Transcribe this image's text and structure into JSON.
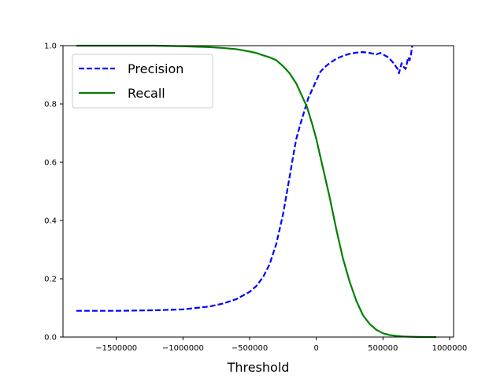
{
  "chart_data": {
    "type": "line",
    "title": "",
    "xlabel": "Threshold",
    "ylabel": "",
    "xlim": [
      -1900000,
      1030000
    ],
    "ylim": [
      0,
      1
    ],
    "xticks": [
      -1500000,
      -1000000,
      -500000,
      0,
      500000,
      1000000
    ],
    "xtick_labels": [
      "−1500000",
      "−1000000",
      "−500000",
      "0",
      "500000",
      "1000000"
    ],
    "yticks": [
      0,
      0.2,
      0.4,
      0.6,
      0.8,
      1.0
    ],
    "ytick_labels": [
      "0.0",
      "0.2",
      "0.4",
      "0.6",
      "0.8",
      "1.0"
    ],
    "grid": false,
    "legend_position": "top-left",
    "series": [
      {
        "name": "Precision",
        "color": "#0000ff",
        "style": "dashed",
        "x": [
          -1800000,
          -1500000,
          -1200000,
          -1000000,
          -800000,
          -700000,
          -600000,
          -500000,
          -450000,
          -400000,
          -350000,
          -300000,
          -250000,
          -200000,
          -170000,
          -150000,
          -120000,
          -100000,
          -80000,
          -60000,
          -40000,
          -20000,
          0,
          30000,
          60000,
          100000,
          150000,
          200000,
          250000,
          300000,
          350000,
          400000,
          450000,
          480000,
          500000,
          540000,
          580000,
          610000,
          620000,
          640000,
          650000,
          670000,
          690000,
          700000,
          710000,
          720000
        ],
        "y": [
          0.09,
          0.09,
          0.092,
          0.095,
          0.105,
          0.115,
          0.13,
          0.155,
          0.175,
          0.205,
          0.25,
          0.32,
          0.42,
          0.55,
          0.63,
          0.68,
          0.73,
          0.76,
          0.79,
          0.82,
          0.84,
          0.86,
          0.88,
          0.91,
          0.925,
          0.94,
          0.955,
          0.965,
          0.972,
          0.976,
          0.978,
          0.975,
          0.97,
          0.975,
          0.97,
          0.96,
          0.94,
          0.92,
          0.905,
          0.94,
          0.93,
          0.92,
          0.96,
          0.95,
          0.97,
          1.0
        ]
      },
      {
        "name": "Recall",
        "color": "#008000",
        "style": "solid",
        "x": [
          -1800000,
          -1500000,
          -1200000,
          -1000000,
          -800000,
          -700000,
          -600000,
          -500000,
          -450000,
          -400000,
          -350000,
          -300000,
          -250000,
          -200000,
          -150000,
          -100000,
          -70000,
          -50000,
          -30000,
          0,
          30000,
          60000,
          100000,
          150000,
          200000,
          250000,
          300000,
          350000,
          400000,
          450000,
          500000,
          550000,
          600000,
          650000,
          700000,
          800000,
          900000
        ],
        "y": [
          1.0,
          1.0,
          1.0,
          0.998,
          0.995,
          0.992,
          0.988,
          0.98,
          0.975,
          0.967,
          0.96,
          0.95,
          0.93,
          0.905,
          0.87,
          0.82,
          0.79,
          0.76,
          0.73,
          0.68,
          0.62,
          0.56,
          0.48,
          0.37,
          0.27,
          0.19,
          0.125,
          0.075,
          0.045,
          0.025,
          0.013,
          0.007,
          0.004,
          0.002,
          0.001,
          0.0,
          0.0
        ]
      }
    ]
  }
}
